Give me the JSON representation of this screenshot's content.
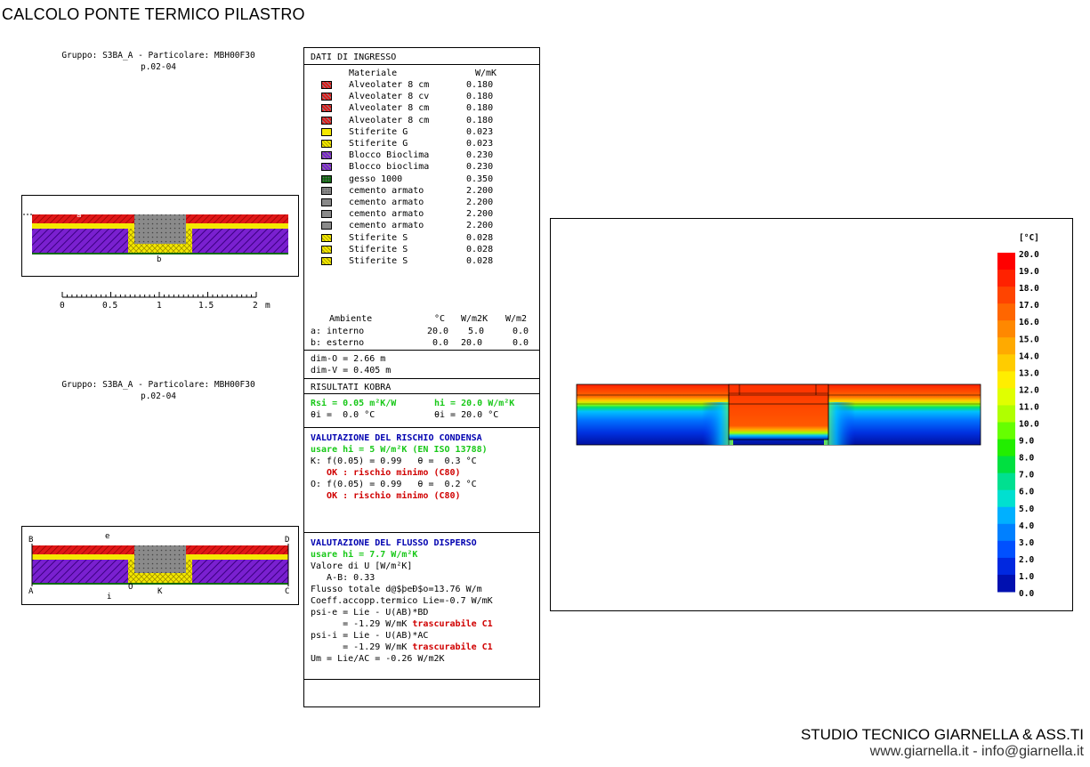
{
  "title": "CALCOLO PONTE TERMICO PILASTRO",
  "group_label_1": "Gruppo: S3BA_A - Particolare: MBH00F30",
  "group_sub_1": "p.02-04",
  "group_label_2": "Gruppo: S3BA_A - Particolare: MBH00F30",
  "group_sub_2": "p.02-04",
  "scale": {
    "ticks": [
      "0",
      "0.5",
      "1",
      "1.5",
      "2"
    ],
    "unit": "m"
  },
  "section1_markers": {
    "a": "a",
    "b": "b"
  },
  "section2_markers": {
    "B": "B",
    "D": "D",
    "e": "e",
    "A": "A",
    "C": "C",
    "i": "i",
    "O": "O",
    "K": "K"
  },
  "inputs": {
    "header": "DATI DI INGRESSO",
    "col_material": "Materiale",
    "col_lambda": "W/mK",
    "materials": [
      {
        "name": "Alveolater 8 cm",
        "value": "0.180",
        "color": "#e01818",
        "pattern": "hatch"
      },
      {
        "name": "Alveolater 8 cv",
        "value": "0.180",
        "color": "#e01818",
        "pattern": "hatch"
      },
      {
        "name": "Alveolater 8 cm",
        "value": "0.180",
        "color": "#e01818",
        "pattern": "hatch"
      },
      {
        "name": "Alveolater 8 cm",
        "value": "0.180",
        "color": "#e01818",
        "pattern": "hatch"
      },
      {
        "name": "Stiferite G",
        "value": "0.023",
        "color": "#f4e800",
        "pattern": "solid"
      },
      {
        "name": "Stiferite G",
        "value": "0.023",
        "color": "#f4e800",
        "pattern": "cross"
      },
      {
        "name": "Blocco Bioclima",
        "value": "0.230",
        "color": "#7a20d0",
        "pattern": "hatch"
      },
      {
        "name": "Blocco bioclima",
        "value": "0.230",
        "color": "#7a20d0",
        "pattern": "hatch"
      },
      {
        "name": "gesso 1000",
        "value": "0.350",
        "color": "#0c6a0c",
        "pattern": "dots"
      },
      {
        "name": "cemento armato",
        "value": "2.200",
        "color": "#8a8a8a",
        "pattern": "dots"
      },
      {
        "name": "cemento armato",
        "value": "2.200",
        "color": "#8a8a8a",
        "pattern": "solid"
      },
      {
        "name": "cemento armato",
        "value": "2.200",
        "color": "#8a8a8a",
        "pattern": "solid"
      },
      {
        "name": "cemento armato",
        "value": "2.200",
        "color": "#8a8a8a",
        "pattern": "solid"
      },
      {
        "name": "Stiferite S",
        "value": "0.028",
        "color": "#f4e800",
        "pattern": "cross"
      },
      {
        "name": "Stiferite S",
        "value": "0.028",
        "color": "#f4e800",
        "pattern": "cross"
      },
      {
        "name": "Stiferite S",
        "value": "0.028",
        "color": "#f4e800",
        "pattern": "cross"
      }
    ],
    "env_header": {
      "name": "Ambiente",
      "c1": "°C",
      "c2": "W/m2K",
      "c3": "W/m2"
    },
    "environments": [
      {
        "name": "a: interno",
        "temp": "20.0",
        "h": "5.0",
        "q": "0.0"
      },
      {
        "name": "b: esterno",
        "temp": "0.0",
        "h": "20.0",
        "q": "0.0"
      }
    ],
    "dim_o": "dim-O = 2.66 m",
    "dim_v": "dim-V = 0.405 m"
  },
  "results": {
    "header": "RISULTATI KOBRA",
    "rsi": "Rsi = 0.05 m²K/W",
    "hi": "hi = 20.0 W/m²K",
    "theta_e": "θi =  0.0 °C",
    "theta_i": "θi = 20.0 °C",
    "condensa_title": "VALUTAZIONE DEL RISCHIO CONDENSA",
    "condensa_use": "usare hi = 5 W/m²K (EN ISO 13788)",
    "k_line": "K: f(0.05) = 0.99   θ =  0.3 °C",
    "k_ok": "   OK : rischio minimo (C80)",
    "o_line": "O: f(0.05) = 0.99   θ =  0.2 °C",
    "o_ok": "   OK : rischio minimo (C80)",
    "flusso_title": "VALUTAZIONE DEL FLUSSO DISPERSO",
    "flusso_use": "usare hi = 7.7 W/m²K",
    "u_label": "Valore di U [W/m²K]",
    "ab_value": "   A-B: 0.33",
    "flusso_tot": "Flusso totale d@$þeÐ$o=13.76 W/m",
    "coeff": "Coeff.accopp.termico Lie=-0.7 W/mK",
    "psi_e_1": "psi-e = Lie - U(AB)*BD",
    "psi_e_2a": "      = -1.29 W/mK ",
    "psi_e_2b": "trascurabile C1",
    "psi_i_1": "psi-i = Lie - U(AB)*AC",
    "psi_i_2a": "      = -1.29 W/mK ",
    "psi_i_2b": "trascurabile C1",
    "um": "Um = Lie/AC = -0.26 W/m2K"
  },
  "legend": {
    "unit": "[°C]",
    "labels": [
      "20.0",
      "19.0",
      "18.0",
      "17.0",
      "16.0",
      "15.0",
      "14.0",
      "13.0",
      "12.0",
      "11.0",
      "10.0",
      "9.0",
      "8.0",
      "7.0",
      "6.0",
      "5.0",
      "4.0",
      "3.0",
      "2.0",
      "1.0",
      "0.0"
    ],
    "colors": [
      "#ff0000",
      "#ff2200",
      "#ff4400",
      "#ff6600",
      "#ff8800",
      "#ffaa00",
      "#ffcc00",
      "#ffee00",
      "#e0ff00",
      "#b0ff00",
      "#66ff00",
      "#22ee00",
      "#00e040",
      "#00e090",
      "#00e0d0",
      "#00b0ff",
      "#0080ff",
      "#0050ff",
      "#0028e0",
      "#0010b0"
    ]
  },
  "footer": {
    "studio": "STUDIO TECNICO GIARNELLA & ASS.TI",
    "web": "www.giarnella.it - info@giarnella.it"
  }
}
